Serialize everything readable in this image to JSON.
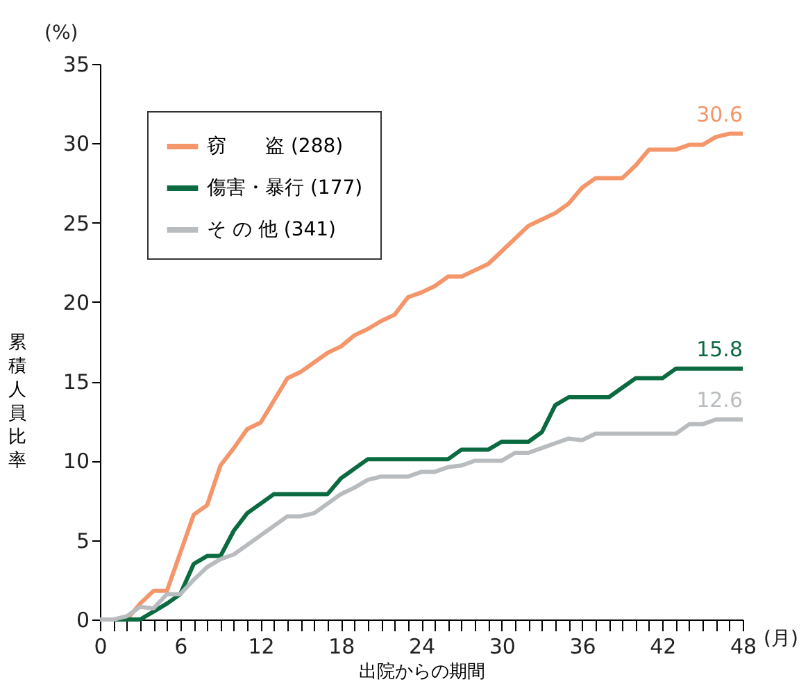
{
  "chart_data": {
    "type": "line",
    "xlabel": "出院からの期間",
    "ylabel": "累積人員比率",
    "annotations": [
      "(%)",
      "(月)"
    ],
    "x": [
      0,
      1,
      2,
      3,
      4,
      5,
      6,
      7,
      8,
      9,
      10,
      11,
      12,
      13,
      14,
      15,
      16,
      17,
      18,
      19,
      20,
      21,
      22,
      23,
      24,
      25,
      26,
      27,
      28,
      29,
      30,
      31,
      32,
      33,
      34,
      35,
      36,
      37,
      38,
      39,
      40,
      41,
      42,
      43,
      44,
      45,
      46,
      47,
      48
    ],
    "series": [
      {
        "name": "窃　　盗 (288)",
        "color": "#f4956a",
        "values": [
          0,
          0,
          0,
          1,
          1.8,
          1.8,
          4.2,
          6.6,
          7.2,
          9.7,
          10.8,
          12,
          12.4,
          13.8,
          15.2,
          15.6,
          16.2,
          16.8,
          17.2,
          17.9,
          18.3,
          18.8,
          19.2,
          20.3,
          20.6,
          21,
          21.6,
          21.6,
          22,
          22.4,
          23.2,
          24,
          24.8,
          25.2,
          25.6,
          26.2,
          27.2,
          27.8,
          27.8,
          27.8,
          28.6,
          29.6,
          29.6,
          29.6,
          29.9,
          29.9,
          30.4,
          30.6,
          30.6
        ],
        "value_labels": [
          null,
          null,
          null,
          null,
          null,
          null,
          null,
          null,
          null,
          null,
          null,
          null,
          null,
          null,
          null,
          null,
          null,
          null,
          null,
          null,
          null,
          null,
          null,
          null,
          null,
          null,
          null,
          null,
          null,
          null,
          null,
          null,
          null,
          null,
          null,
          null,
          null,
          null,
          null,
          null,
          null,
          null,
          null,
          null,
          null,
          null,
          null,
          null,
          "30.6"
        ]
      },
      {
        "name": "傷害・暴行 (177)",
        "color": "#0b6a3f",
        "values": [
          0,
          0,
          0,
          0,
          0.5,
          1,
          1.6,
          3.5,
          4,
          4,
          5.6,
          6.7,
          7.3,
          7.9,
          7.9,
          7.9,
          7.9,
          7.9,
          8.9,
          9.5,
          10.1,
          10.1,
          10.1,
          10.1,
          10.1,
          10.1,
          10.1,
          10.7,
          10.7,
          10.7,
          11.2,
          11.2,
          11.2,
          11.8,
          13.5,
          14,
          14,
          14,
          14,
          14.6,
          15.2,
          15.2,
          15.2,
          15.8,
          15.8,
          15.8,
          15.8,
          15.8,
          15.8
        ],
        "value_labels": [
          null,
          null,
          null,
          null,
          null,
          null,
          null,
          null,
          null,
          null,
          null,
          null,
          null,
          null,
          null,
          null,
          null,
          null,
          null,
          null,
          null,
          null,
          null,
          null,
          null,
          null,
          null,
          null,
          null,
          null,
          null,
          null,
          null,
          null,
          null,
          null,
          null,
          null,
          null,
          null,
          null,
          null,
          null,
          null,
          null,
          null,
          null,
          null,
          "15.8"
        ]
      },
      {
        "name": "そ の 他 (341)",
        "color": "#b9bcbe",
        "values": [
          0,
          0,
          0.2,
          0.8,
          0.7,
          1.6,
          1.6,
          2.5,
          3.3,
          3.8,
          4.1,
          4.7,
          5.3,
          5.9,
          6.5,
          6.5,
          6.7,
          7.3,
          7.9,
          8.3,
          8.8,
          9,
          9,
          9,
          9.3,
          9.3,
          9.6,
          9.7,
          10,
          10,
          10,
          10.5,
          10.5,
          10.8,
          11.1,
          11.4,
          11.3,
          11.7,
          11.7,
          11.7,
          11.7,
          11.7,
          11.7,
          11.7,
          12.3,
          12.3,
          12.6,
          12.6,
          12.6
        ],
        "value_labels": [
          null,
          null,
          null,
          null,
          null,
          null,
          null,
          null,
          null,
          null,
          null,
          null,
          null,
          null,
          null,
          null,
          null,
          null,
          null,
          null,
          null,
          null,
          null,
          null,
          null,
          null,
          null,
          null,
          null,
          null,
          null,
          null,
          null,
          null,
          null,
          null,
          null,
          null,
          null,
          null,
          null,
          null,
          null,
          null,
          null,
          null,
          null,
          null,
          "12.6"
        ]
      }
    ],
    "xlim": [
      0,
      48
    ],
    "xticks": [
      0,
      {
        "value": 1,
        "label": null
      },
      {
        "value": 2,
        "label": null
      },
      {
        "value": 3,
        "label": null
      },
      {
        "value": 4,
        "label": null
      },
      {
        "value": 5,
        "label": null
      },
      6,
      {
        "value": 7,
        "label": null
      },
      {
        "value": 8,
        "label": null
      },
      {
        "value": 9,
        "label": null
      },
      {
        "value": 10,
        "label": null
      },
      {
        "value": 11,
        "label": null
      },
      12,
      {
        "value": 13,
        "label": null
      },
      {
        "value": 14,
        "label": null
      },
      {
        "value": 15,
        "label": null
      },
      {
        "value": 16,
        "label": null
      },
      {
        "value": 17,
        "label": null
      },
      18,
      {
        "value": 19,
        "label": null
      },
      {
        "value": 20,
        "label": null
      },
      {
        "value": 21,
        "label": null
      },
      {
        "value": 22,
        "label": null
      },
      {
        "value": 23,
        "label": null
      },
      24,
      {
        "value": 25,
        "label": null
      },
      {
        "value": 26,
        "label": null
      },
      {
        "value": 27,
        "label": null
      },
      {
        "value": 28,
        "label": null
      },
      {
        "value": 29,
        "label": null
      },
      30,
      {
        "value": 31,
        "label": null
      },
      {
        "value": 32,
        "label": null
      },
      {
        "value": 33,
        "label": null
      },
      {
        "value": 34,
        "label": null
      },
      {
        "value": 35,
        "label": null
      },
      36,
      {
        "value": 37,
        "label": null
      },
      {
        "value": 38,
        "label": null
      },
      {
        "value": 39,
        "label": null
      },
      {
        "value": 40,
        "label": null
      },
      {
        "value": 41,
        "label": null
      },
      42,
      {
        "value": 43,
        "label": null
      },
      {
        "value": 44,
        "label": null
      },
      {
        "value": 45,
        "label": null
      },
      {
        "value": 46,
        "label": null
      },
      {
        "value": 47,
        "label": null
      },
      48
    ],
    "ylim": [
      0,
      35
    ],
    "yticks": [
      0,
      5,
      10,
      15,
      20,
      25,
      30,
      35
    ],
    "grid": false,
    "legend": "top left",
    "marker": "none",
    "line_style": "solid"
  }
}
